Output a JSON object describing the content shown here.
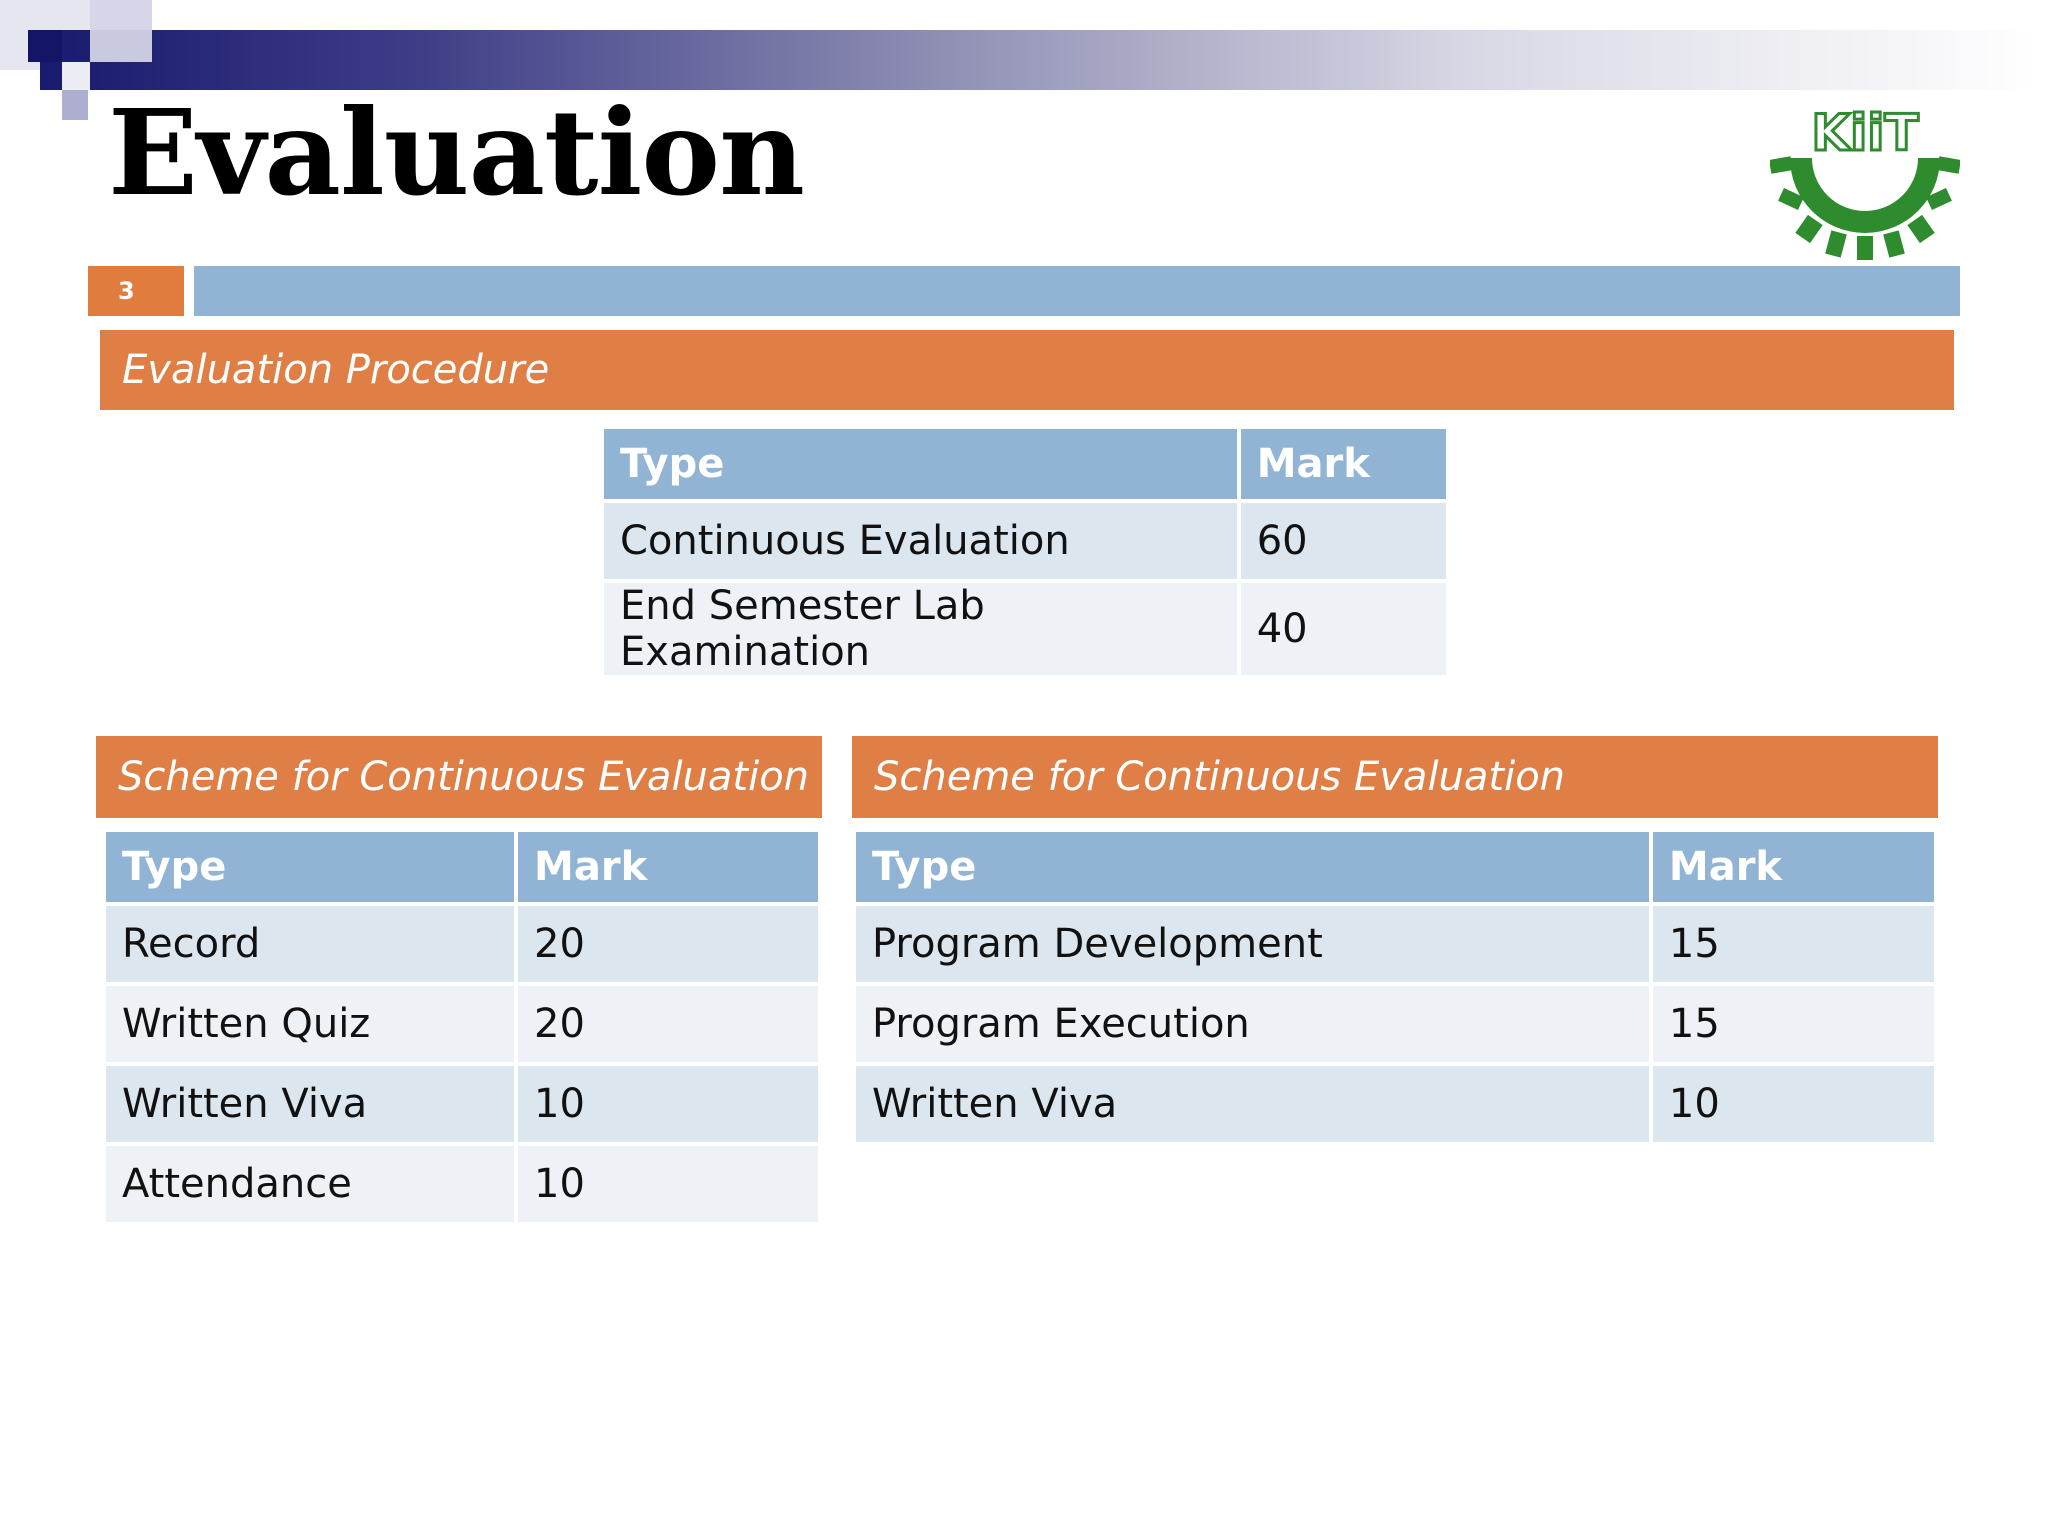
{
  "slide": {
    "title": "Evaluation",
    "number": "3",
    "logo_text": "KiiT"
  },
  "colors": {
    "accent_orange": "#df7f46",
    "header_blue": "#92b4d4",
    "row_dark": "#dce6ef",
    "row_light": "#eef2f7",
    "logo_green": "#2e8b2e"
  },
  "procedure": {
    "heading": "Evaluation Procedure",
    "columns": [
      "Type",
      "Mark"
    ],
    "rows": [
      [
        "Continuous Evaluation",
        "60"
      ],
      [
        "End Semester Lab Examination",
        "40"
      ]
    ]
  },
  "scheme_left": {
    "heading": "Scheme for Continuous Evaluation",
    "columns": [
      "Type",
      "Mark"
    ],
    "rows": [
      [
        "Record",
        "20"
      ],
      [
        "Written Quiz",
        "20"
      ],
      [
        "Written Viva",
        "10"
      ],
      [
        "Attendance",
        "10"
      ]
    ]
  },
  "scheme_right": {
    "heading": "Scheme for Continuous Evaluation",
    "columns": [
      "Type",
      "Mark"
    ],
    "rows": [
      [
        "Program Development",
        "15"
      ],
      [
        "Program Execution",
        "15"
      ],
      [
        "Written Viva",
        "10"
      ]
    ]
  }
}
